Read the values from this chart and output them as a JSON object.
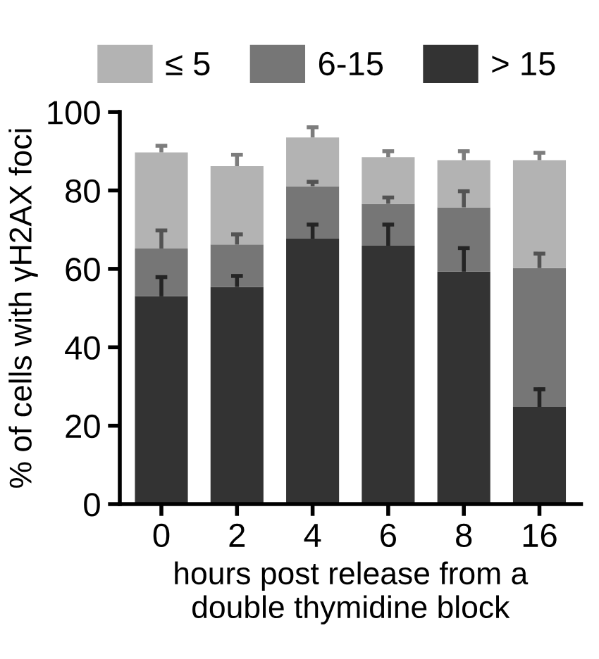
{
  "chart_data": {
    "type": "bar",
    "stacked": true,
    "xlabel": "hours post release from a\ndouble thymidine block",
    "ylabel": "% of cells with γH2AX foci",
    "categories": [
      "0",
      "2",
      "4",
      "6",
      "8",
      "16"
    ],
    "series": [
      {
        "name": "> 15",
        "color": "#333333",
        "values": [
          53.0,
          55.4,
          67.7,
          65.9,
          59.3,
          24.8
        ],
        "errors": [
          [
            53.0,
            57.9
          ],
          [
            55.4,
            58.2
          ],
          [
            67.7,
            71.3
          ],
          [
            65.9,
            71.3
          ],
          [
            59.3,
            65.3
          ],
          [
            24.8,
            29.3
          ]
        ]
      },
      {
        "name": "6-15",
        "color": "#767676",
        "values": [
          12.2,
          10.8,
          13.4,
          10.7,
          16.4,
          35.4
        ],
        "errors": [
          [
            65.2,
            69.8
          ],
          [
            66.2,
            68.8
          ],
          [
            81.1,
            82.2
          ],
          [
            76.6,
            78.2
          ],
          [
            75.7,
            79.8
          ],
          [
            60.2,
            63.9
          ]
        ]
      },
      {
        "name": "≤ 5",
        "color": "#b3b3b3",
        "values": [
          24.5,
          20.0,
          12.4,
          11.9,
          12.0,
          27.5
        ],
        "errors": [
          [
            89.7,
            91.4
          ],
          [
            86.2,
            89.1
          ],
          [
            93.5,
            96.1
          ],
          [
            88.5,
            90.0
          ],
          [
            87.7,
            90.0
          ],
          [
            87.7,
            89.6
          ]
        ]
      }
    ],
    "ylim": [
      0,
      100
    ],
    "yticks": [
      0,
      20,
      40,
      60,
      80,
      100
    ],
    "grid": false,
    "legend": "top"
  }
}
